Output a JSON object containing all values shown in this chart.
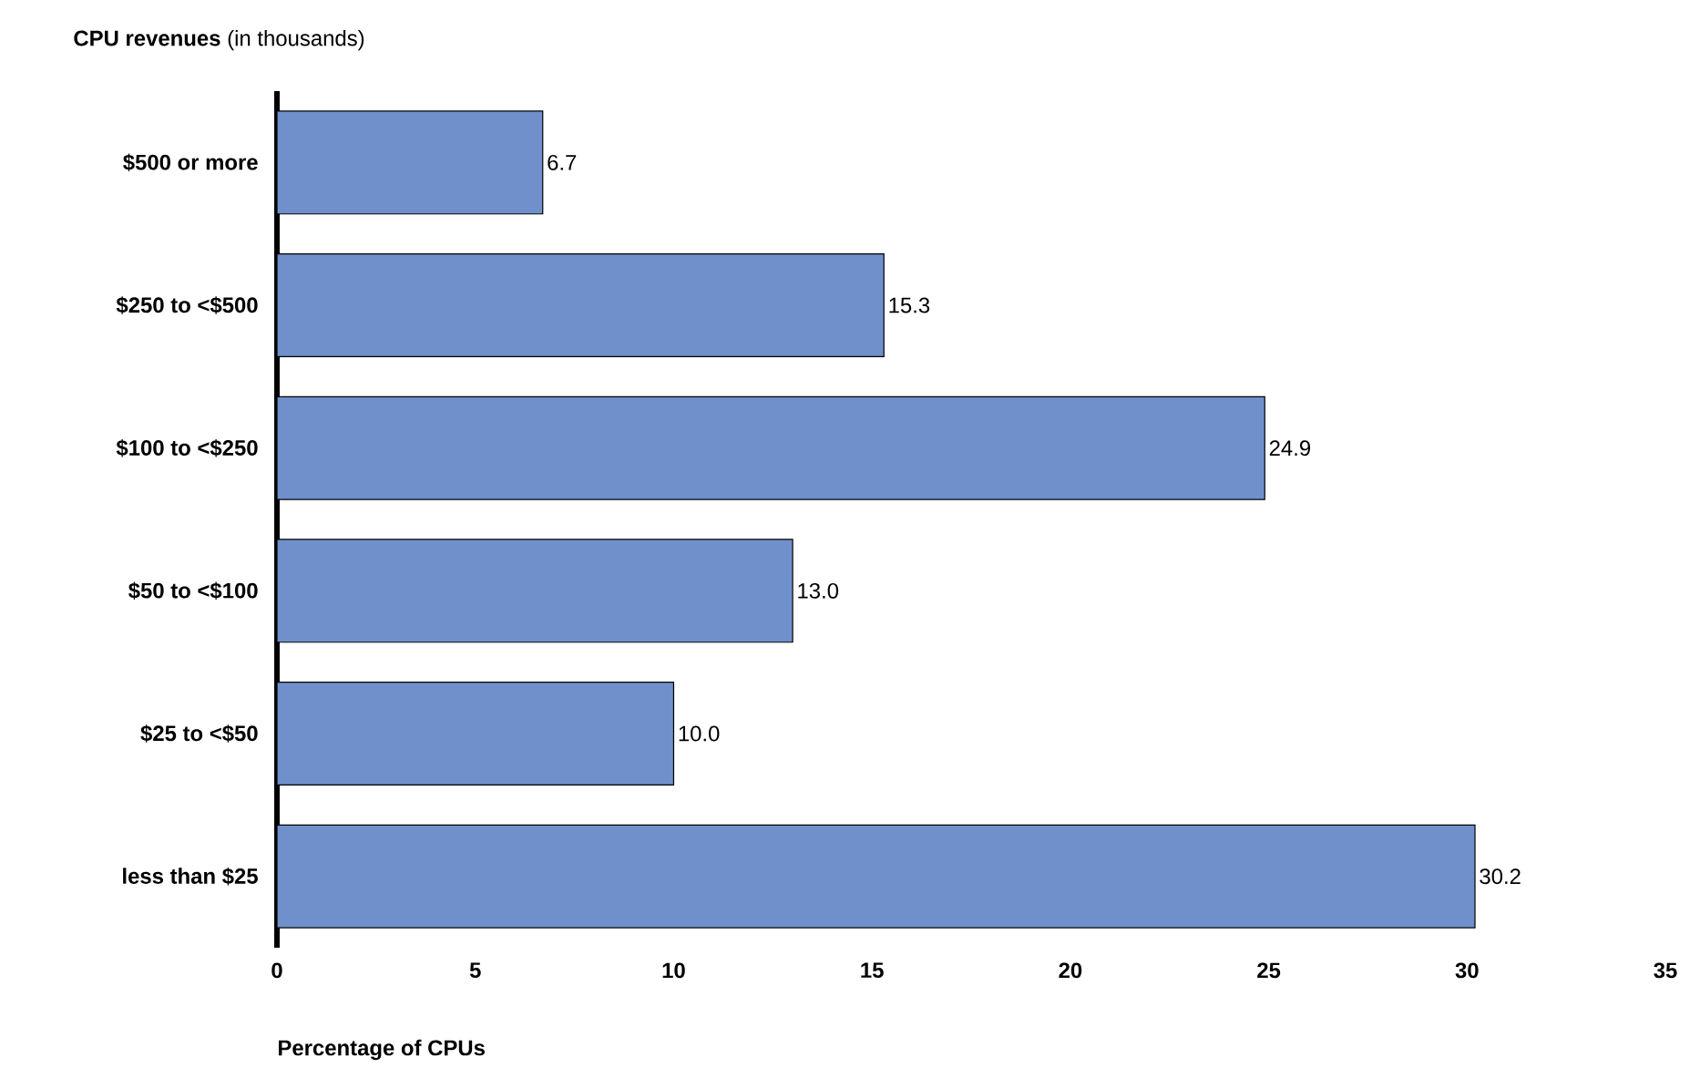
{
  "chart_data": {
    "type": "bar",
    "orientation": "horizontal",
    "title": "**CPU revenues** (in thousands)",
    "xlabel": "Percentage of CPUs",
    "categories": [
      "$500 or more",
      "$250 to <$500",
      "$100 to <$250",
      "$50 to <$100",
      "$25 to <$50",
      "less than $25"
    ],
    "values": [
      6.7,
      15.3,
      24.9,
      13.0,
      10.0,
      30.2
    ],
    "value_labels": [
      "6.7",
      "15.3",
      "24.9",
      "13.0",
      "10.0",
      "30.2"
    ],
    "color": "#7090cc",
    "xlim": [
      0,
      35
    ],
    "xticks": [
      0,
      5,
      10,
      15,
      20,
      25,
      30,
      35
    ]
  }
}
